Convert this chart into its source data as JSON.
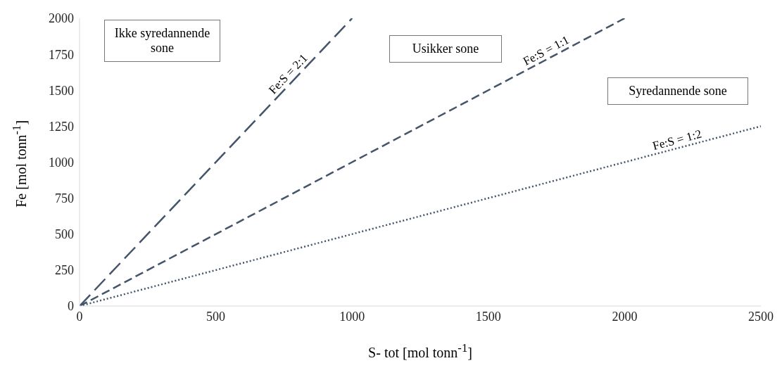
{
  "chart_data": {
    "type": "line",
    "xlabel": "S- tot [mol tonn$^{-1}$]",
    "ylabel": "Fe [mol tonn$^{-1}$]",
    "xlim": [
      0,
      2500
    ],
    "xticks": [
      0,
      500,
      1000,
      1500,
      2000,
      2500
    ],
    "ylim": [
      0,
      2000
    ],
    "yticks": [
      0,
      250,
      500,
      750,
      1000,
      1250,
      1500,
      1750,
      2000
    ],
    "grid": false,
    "legend": false,
    "marker": "none",
    "series": [
      {
        "name": "Fe:S = 2:1",
        "color": "#44546a",
        "x": [
          0,
          1000
        ],
        "values": [
          0,
          2000
        ],
        "line_style": "dashed"
      },
      {
        "name": "Fe:S = 1:1",
        "color": "#44546a",
        "x": [
          0,
          2000
        ],
        "values": [
          0,
          2000
        ],
        "line_style": "dashed"
      },
      {
        "name": "Fe:S = 1:2",
        "color": "#44546a",
        "x": [
          0,
          2500
        ],
        "values": [
          0,
          1250
        ],
        "line_style": "dotted"
      }
    ],
    "annotations": [
      "Ikke syredannende sone",
      "Usikker sone",
      "Syredannende sone"
    ]
  }
}
